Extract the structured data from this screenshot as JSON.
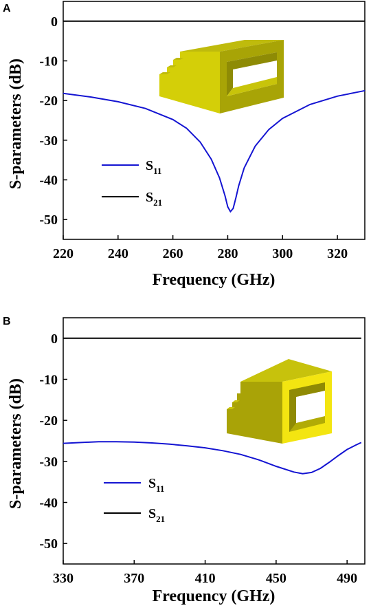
{
  "chart_data": [
    {
      "type": "line",
      "panel": "A",
      "xlabel": "Frequency (GHz)",
      "ylabel": "S-parameters (dB)",
      "xlim": [
        220,
        330
      ],
      "ylim": [
        -55,
        5
      ],
      "xticks": [
        220,
        240,
        260,
        280,
        300,
        320
      ],
      "yticks": [
        0,
        -10,
        -20,
        -30,
        -40,
        -50
      ],
      "legend": {
        "placement": "bottom-left"
      },
      "series": [
        {
          "name_main": "S",
          "name_sub": "11",
          "color": "#1414d2",
          "x": [
            220,
            230,
            240,
            250,
            260,
            265,
            270,
            274,
            277,
            279,
            280,
            281,
            282,
            283,
            284,
            286,
            290,
            295,
            300,
            310,
            320,
            330
          ],
          "y": [
            -18.2,
            -19.1,
            -20.3,
            -22.0,
            -24.8,
            -27.0,
            -30.5,
            -34.8,
            -39.5,
            -44.0,
            -46.8,
            -48.0,
            -47.2,
            -44.5,
            -41.5,
            -37.0,
            -31.5,
            -27.3,
            -24.5,
            -21.0,
            -18.9,
            -17.5
          ]
        },
        {
          "name_main": "S",
          "name_sub": "21",
          "color": "#000000",
          "x": [
            220,
            330
          ],
          "y": [
            0,
            0
          ]
        }
      ]
    },
    {
      "type": "line",
      "panel": "B",
      "xlabel": "Frequency (GHz)",
      "ylabel": "S-parameters (dB)",
      "xlim": [
        330,
        500
      ],
      "ylim": [
        -55,
        5
      ],
      "xticks": [
        330,
        370,
        410,
        450,
        490
      ],
      "yticks": [
        0,
        -10,
        -20,
        -30,
        -40,
        -50
      ],
      "legend": {
        "placement": "bottom-left"
      },
      "series": [
        {
          "name_main": "S",
          "name_sub": "11",
          "color": "#1414d2",
          "x": [
            330,
            340,
            350,
            360,
            370,
            380,
            390,
            400,
            410,
            420,
            430,
            440,
            450,
            460,
            465,
            470,
            475,
            480,
            485,
            490,
            495,
            498
          ],
          "y": [
            -25.6,
            -25.4,
            -25.2,
            -25.2,
            -25.3,
            -25.5,
            -25.8,
            -26.2,
            -26.7,
            -27.4,
            -28.3,
            -29.6,
            -31.2,
            -32.6,
            -33.0,
            -32.7,
            -31.7,
            -30.2,
            -28.6,
            -27.1,
            -26.0,
            -25.4
          ]
        },
        {
          "name_main": "S",
          "name_sub": "21",
          "color": "#000000",
          "x": [
            330,
            498
          ],
          "y": [
            0,
            0
          ]
        }
      ]
    }
  ],
  "figure": {
    "colors": {
      "frame": "#000000",
      "gold_front": "#d9d20a",
      "gold_top": "#c2bd0f",
      "gold_side": "#9d9a06",
      "yellow_face": "#f4e80f"
    }
  }
}
